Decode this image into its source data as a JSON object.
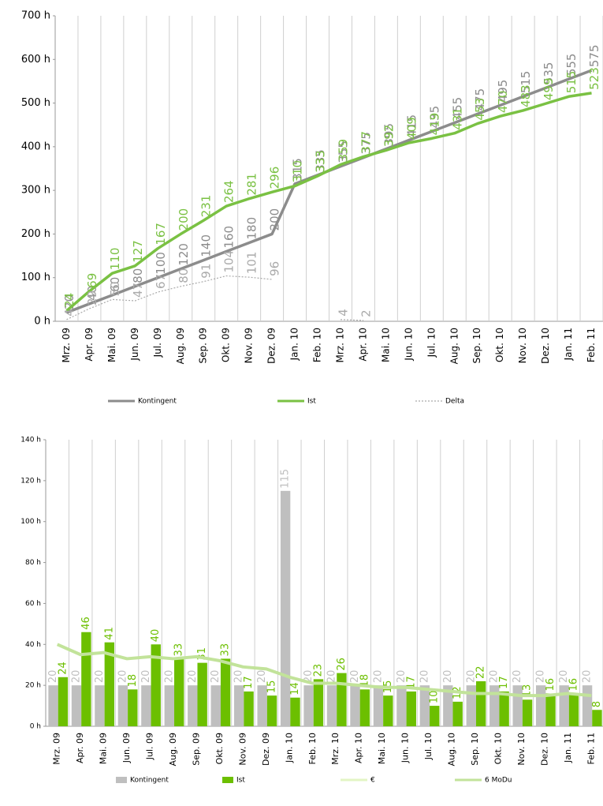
{
  "chart_data": [
    {
      "type": "line",
      "categories": [
        "Mrz. 09",
        "Apr. 09",
        "Mai. 09",
        "Jun. 09",
        "Jul. 09",
        "Aug. 09",
        "Sep. 09",
        "Okt. 09",
        "Nov. 09",
        "Dez. 09",
        "Jan. 10",
        "Feb. 10",
        "Mrz. 10",
        "Apr. 10",
        "Mai. 10",
        "Jun. 10",
        "Jul. 10",
        "Aug. 10",
        "Sep. 10",
        "Okt. 10",
        "Nov. 10",
        "Dez. 10",
        "Jan. 11",
        "Feb. 11"
      ],
      "series": [
        {
          "name": "Kontingent",
          "color": "#8c8c8c",
          "style": "solid",
          "width": 3.5,
          "values": [
            20,
            40,
            60,
            80,
            100,
            120,
            140,
            160,
            180,
            200,
            315,
            335,
            355,
            375,
            395,
            415,
            435,
            455,
            475,
            495,
            515,
            535,
            555,
            575
          ]
        },
        {
          "name": "Ist",
          "color": "#7ac143",
          "style": "solid",
          "width": 3.5,
          "values": [
            24,
            69,
            110,
            127,
            167,
            200,
            231,
            264,
            281,
            296,
            310,
            333,
            359,
            377,
            392,
            409,
            419,
            431,
            453,
            470,
            483,
            499,
            515,
            523
          ]
        },
        {
          "name": "Delta",
          "color": "#aaaaaa",
          "style": "dotted",
          "width": 1.2,
          "values": [
            4,
            29,
            50,
            47,
            67,
            80,
            91,
            104,
            101,
            96,
            null,
            null,
            4,
            2,
            null,
            null,
            null,
            null,
            null,
            null,
            null,
            null,
            null,
            null
          ]
        }
      ],
      "ylim": [
        0,
        700
      ],
      "yticks": [
        {
          "value": 0,
          "label": "0 h"
        },
        {
          "value": 100,
          "label": "100 h"
        },
        {
          "value": 200,
          "label": "200 h"
        },
        {
          "value": 300,
          "label": "300 h"
        },
        {
          "value": 400,
          "label": "400 h"
        },
        {
          "value": 500,
          "label": "500 h"
        },
        {
          "value": 600,
          "label": "600 h"
        },
        {
          "value": 700,
          "label": "700 h"
        }
      ],
      "grid": "vertical"
    },
    {
      "type": "bar",
      "categories": [
        "Mrz. 09",
        "Apr. 09",
        "Mai. 09",
        "Jun. 09",
        "Jul. 09",
        "Aug. 09",
        "Sep. 09",
        "Okt. 09",
        "Nov. 09",
        "Dez. 09",
        "Jan. 10",
        "Feb. 10",
        "Mrz. 10",
        "Apr. 10",
        "Mai. 10",
        "Jun. 10",
        "Jul. 10",
        "Aug. 10",
        "Sep. 10",
        "Okt. 10",
        "Nov. 10",
        "Dez. 10",
        "Jan. 11",
        "Feb. 11"
      ],
      "series": [
        {
          "name": "Kontingent",
          "color": "#bfbfbf",
          "kind": "bar",
          "values": [
            20,
            20,
            20,
            20,
            20,
            20,
            20,
            20,
            20,
            20,
            115,
            20,
            20,
            20,
            20,
            20,
            20,
            20,
            20,
            20,
            20,
            20,
            20,
            20
          ]
        },
        {
          "name": "Ist",
          "color": "#6cbf00",
          "kind": "bar",
          "values": [
            24,
            46,
            41,
            18,
            40,
            33,
            31,
            33,
            17,
            15,
            14,
            23,
            26,
            18,
            15,
            17,
            10,
            12,
            22,
            17,
            13,
            16,
            16,
            8
          ]
        },
        {
          "name": "€",
          "color": "#e3f5c4",
          "kind": "line",
          "values": [
            null,
            null,
            null,
            null,
            null,
            null,
            null,
            null,
            null,
            null,
            null,
            null,
            null,
            null,
            null,
            null,
            null,
            null,
            null,
            null,
            null,
            null,
            null,
            null
          ]
        },
        {
          "name": "6 MoDu",
          "color": "#c2e39a",
          "kind": "line",
          "values": [
            40,
            35,
            36,
            33,
            34,
            33,
            34,
            32,
            29,
            28,
            24,
            21,
            21,
            20,
            19,
            19,
            18,
            17,
            16,
            16,
            15,
            15,
            16,
            15
          ]
        }
      ],
      "ylim": [
        0,
        140
      ],
      "yticks": [
        {
          "value": 0,
          "label": "0 h"
        },
        {
          "value": 20,
          "label": "20 h"
        },
        {
          "value": 40,
          "label": "40 h"
        },
        {
          "value": 60,
          "label": "60 h"
        },
        {
          "value": 80,
          "label": "80 h"
        },
        {
          "value": 100,
          "label": "100 h"
        },
        {
          "value": 120,
          "label": "120 h"
        },
        {
          "value": 140,
          "label": "140 h"
        }
      ],
      "grid": "vertical"
    }
  ]
}
